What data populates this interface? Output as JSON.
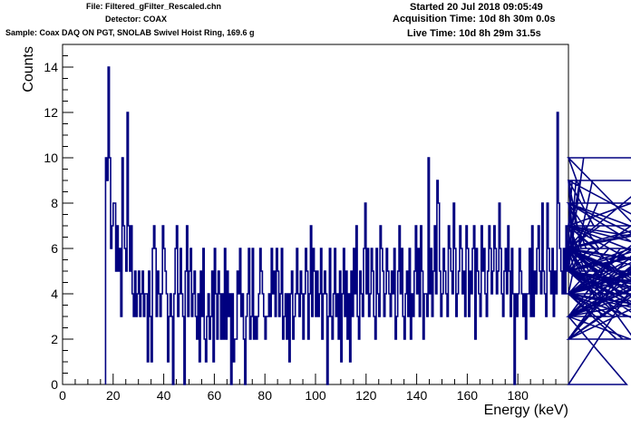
{
  "header": {
    "file": "File: Filtered_gFilter_Rescaled.chn",
    "detector": "Detector: COAX",
    "sample": "Sample: Coax DAQ ON PGT, SNOLAB Swivel Hoist Ring, 169.6 g",
    "started": "Started 20 Jul 2018 09:05:49",
    "acquisition_time": "Acquisition Time: 10d 8h 30m 0.0s",
    "live_time": "Live Time: 10d 8h 29m 31.5s"
  },
  "chart_data": {
    "type": "histogram",
    "xlabel": "Energy (keV)",
    "ylabel": "Counts",
    "xlim": [
      0,
      200
    ],
    "ylim": [
      0,
      15
    ],
    "x_ticks": [
      0,
      20,
      40,
      60,
      80,
      100,
      120,
      140,
      160,
      180
    ],
    "y_ticks": [
      0,
      2,
      4,
      6,
      8,
      10,
      12,
      14
    ],
    "line_color": "#000080",
    "bin_start": 17,
    "bin_width": 0.5,
    "counts": [
      10,
      9,
      14,
      10,
      6,
      7,
      8,
      8,
      5,
      7,
      5,
      6,
      3,
      10,
      7,
      6,
      5,
      12,
      7,
      5,
      7,
      4,
      3,
      5,
      3,
      4,
      5,
      3,
      4,
      5,
      3,
      4,
      4,
      1,
      5,
      3,
      1,
      6,
      7,
      6,
      3,
      5,
      4,
      3,
      4,
      7,
      6,
      5,
      4,
      1,
      3,
      4,
      3,
      0,
      4,
      6,
      7,
      3,
      4,
      6,
      4,
      3,
      0,
      5,
      7,
      3,
      5,
      6,
      3,
      4,
      5,
      3,
      2,
      4,
      1,
      5,
      3,
      6,
      2,
      1,
      3,
      4,
      2,
      3,
      5,
      1,
      6,
      4,
      2,
      5,
      4,
      2,
      4,
      2,
      6,
      2,
      5,
      3,
      4,
      0,
      4,
      1,
      2,
      2,
      5,
      4,
      6,
      3,
      4,
      2,
      0,
      3,
      4,
      6,
      2,
      3,
      6,
      2,
      3,
      2,
      3,
      4,
      6,
      5,
      4,
      3,
      2,
      3,
      3,
      4,
      3,
      6,
      4,
      5,
      3,
      6,
      5,
      3,
      4,
      6,
      2,
      3,
      4,
      2,
      4,
      1,
      4,
      5,
      2,
      3,
      4,
      6,
      4,
      3,
      5,
      4,
      2,
      4,
      6,
      5,
      2,
      4,
      7,
      3,
      6,
      5,
      3,
      5,
      3,
      4,
      6,
      2,
      4,
      5,
      4,
      0,
      3,
      6,
      3,
      2,
      4,
      6,
      3,
      4,
      2,
      5,
      1,
      4,
      6,
      3,
      5,
      2,
      4,
      1,
      5,
      3,
      6,
      4,
      7,
      3,
      2,
      5,
      4,
      3,
      6,
      8,
      4,
      6,
      3,
      4,
      6,
      5,
      3,
      2,
      6,
      4,
      3,
      7,
      6,
      5,
      3,
      4,
      6,
      5,
      4,
      3,
      5,
      4,
      6,
      2,
      3,
      5,
      7,
      4,
      6,
      3,
      2,
      4,
      5,
      3,
      6,
      2,
      4,
      3,
      5,
      7,
      4,
      6,
      3,
      7,
      5,
      2,
      4,
      4,
      3,
      10,
      4,
      6,
      3,
      5,
      7,
      4,
      9,
      8,
      5,
      3,
      4,
      6,
      5,
      4,
      3,
      7,
      6,
      5,
      4,
      8,
      6,
      3,
      4,
      5,
      7,
      6,
      4,
      5,
      3,
      7,
      6,
      3,
      5,
      4,
      6,
      7,
      2,
      6,
      5,
      4,
      3,
      7,
      5,
      6,
      4,
      3,
      5,
      7,
      6,
      4,
      5,
      7,
      6,
      4,
      5,
      8,
      6,
      4,
      3,
      5,
      6,
      4,
      7,
      5,
      3,
      6,
      4,
      0,
      4,
      3,
      4,
      6,
      5,
      4,
      3,
      4,
      2,
      4,
      4,
      6,
      3,
      7,
      3,
      5,
      4,
      6,
      7,
      5,
      4,
      8,
      5,
      4,
      3,
      8,
      6,
      5,
      4,
      6,
      3,
      5,
      4,
      12,
      8,
      6,
      5,
      4,
      6,
      4,
      7,
      5,
      6,
      8,
      7,
      9,
      6,
      5,
      9,
      7,
      6,
      9,
      6,
      5,
      10,
      8,
      6,
      7,
      5,
      6,
      4,
      9,
      7,
      6,
      5,
      8,
      6,
      7,
      3,
      5,
      4,
      4,
      3,
      4,
      6,
      5,
      5,
      4,
      3,
      4,
      2,
      5,
      3,
      6,
      4,
      2,
      5,
      3,
      0,
      4,
      3,
      2,
      4,
      6,
      2,
      4,
      5,
      3,
      6,
      4,
      5,
      6,
      3,
      5,
      4,
      6,
      7,
      5,
      3,
      6,
      5,
      4,
      7,
      6,
      3,
      5,
      8,
      6,
      4,
      5,
      6,
      7,
      3,
      5,
      6,
      4,
      3,
      5,
      6,
      10,
      5,
      4,
      6,
      7,
      5,
      3,
      4,
      2,
      8,
      6,
      5,
      7,
      9,
      6,
      5,
      4,
      6,
      3,
      5,
      4,
      7,
      6,
      5,
      2,
      5,
      4,
      3,
      8,
      8,
      4,
      3
    ]
  }
}
